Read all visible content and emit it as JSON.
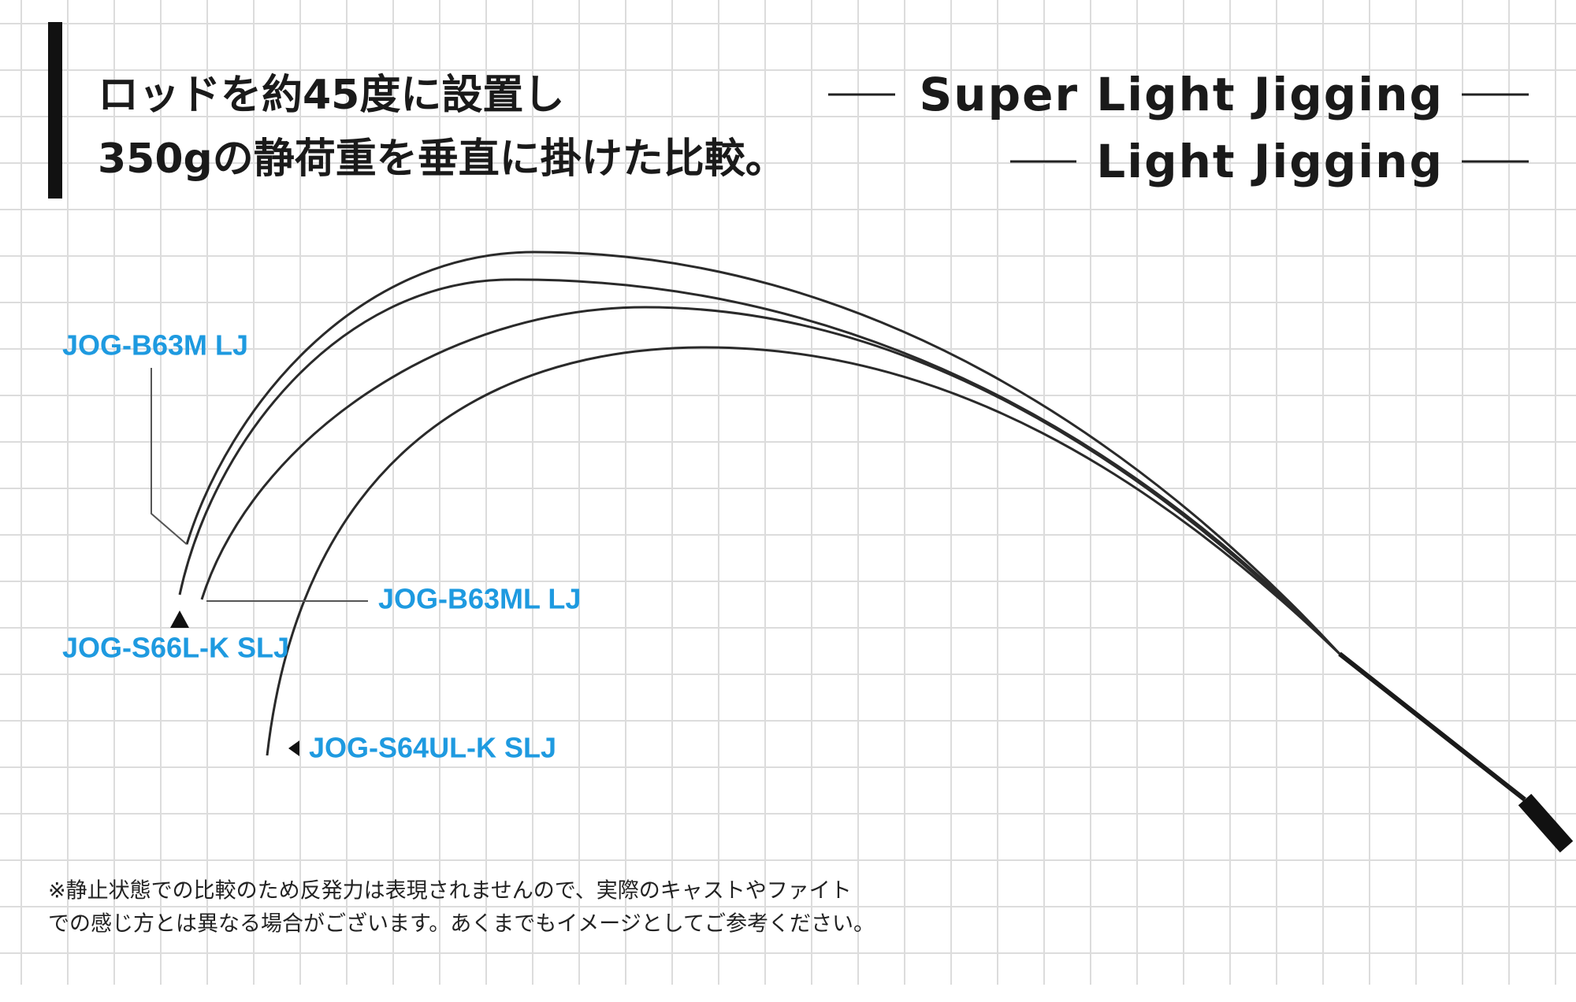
{
  "header": {
    "title_lines": [
      "ロッドを約45度に設置し",
      "350gの静荷重を垂直に掛けた比較。"
    ]
  },
  "legend": [
    "Super Light Jigging",
    "Light Jigging"
  ],
  "rods": [
    {
      "label": "JOG-B63M LJ"
    },
    {
      "label": "JOG-B63ML LJ"
    },
    {
      "label": "JOG-S66L-K SLJ"
    },
    {
      "label": "JOG-S64UL-K SLJ"
    }
  ],
  "footnote": [
    "※静止状態での比較のため反発力は表現されませんので、実際のキャストやファイト",
    "での感じ方とは異なる場合がございます。あくまでもイメージとしてご参考ください。"
  ]
}
